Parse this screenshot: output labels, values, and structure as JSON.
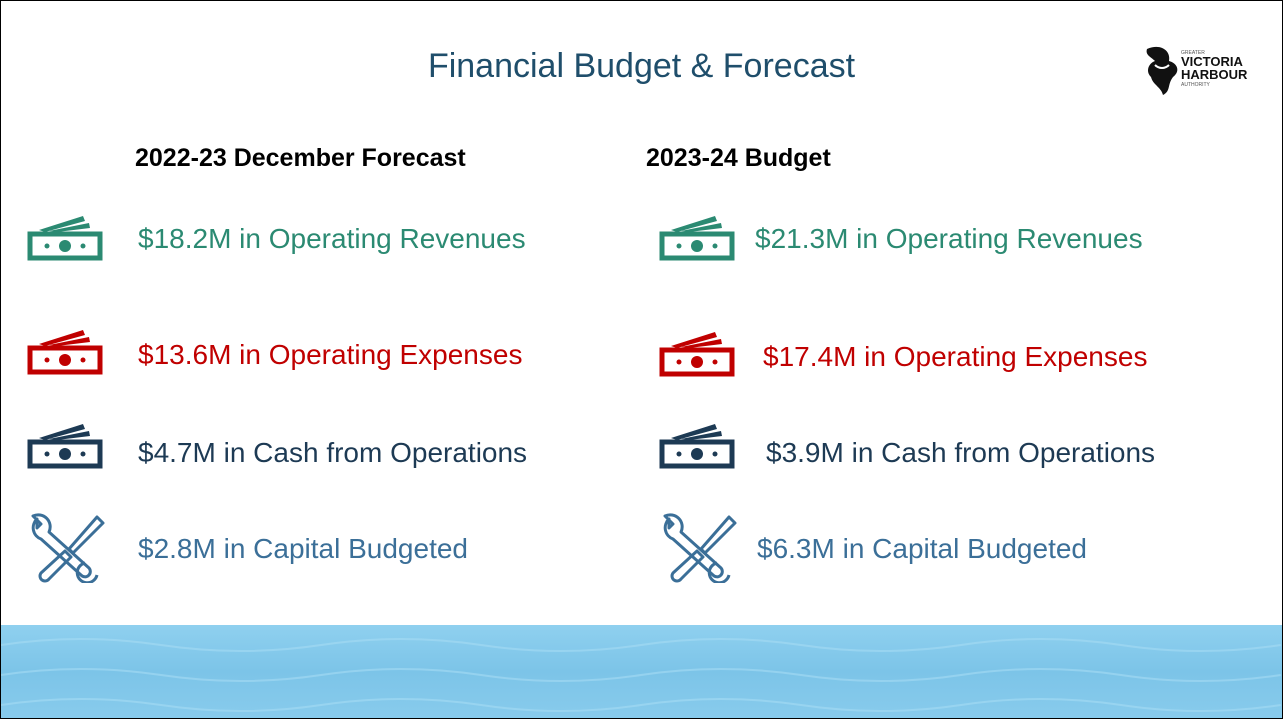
{
  "header": {
    "title": "Financial Budget & Forecast"
  },
  "logo": {
    "top": "GREATER",
    "line1": "VICTORIA",
    "line2": "HARBOUR",
    "bottom": "AUTHORITY"
  },
  "columns": [
    {
      "heading": "2022-23 December Forecast",
      "items": [
        "$18.2M in Operating Revenues",
        "$13.6M in Operating Expenses",
        "$4.7M in Cash from Operations",
        "$2.8M in Capital Budgeted"
      ]
    },
    {
      "heading": "2023-24 Budget",
      "items": [
        "$21.3M in Operating Revenues",
        "$17.4M in Operating Expenses",
        "$3.9M in Cash from Operations",
        "$6.3M in Capital Budgeted"
      ]
    }
  ]
}
